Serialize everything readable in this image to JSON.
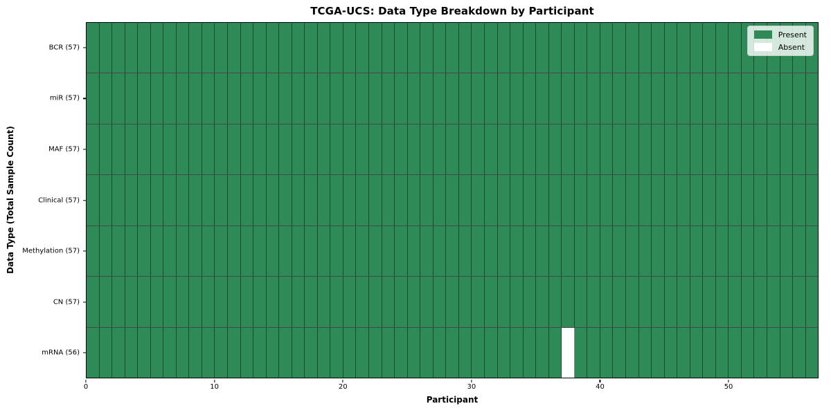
{
  "chart_data": {
    "type": "heatmap",
    "title": "TCGA-UCS: Data Type Breakdown by Participant",
    "xlabel": "Participant",
    "ylabel": "Data Type (Total Sample Count)",
    "n_participants": 57,
    "x_ticks": [
      0,
      10,
      20,
      30,
      40,
      50
    ],
    "x_range": [
      0,
      57
    ],
    "grid": "cell-borders",
    "rows": [
      {
        "label": "BCR (57)",
        "data_type": "BCR",
        "count": 57,
        "absent_participants": []
      },
      {
        "label": "miR (57)",
        "data_type": "miR",
        "count": 57,
        "absent_participants": []
      },
      {
        "label": "MAF (57)",
        "data_type": "MAF",
        "count": 57,
        "absent_participants": []
      },
      {
        "label": "Clinical (57)",
        "data_type": "Clinical",
        "count": 57,
        "absent_participants": []
      },
      {
        "label": "Methylation (57)",
        "data_type": "Methylation",
        "count": 57,
        "absent_participants": []
      },
      {
        "label": "CN (57)",
        "data_type": "CN",
        "count": 57,
        "absent_participants": []
      },
      {
        "label": "mRNA (56)",
        "data_type": "mRNA",
        "count": 56,
        "absent_participants": [
          37
        ]
      }
    ],
    "legend": {
      "position": "upper-right",
      "entries": [
        {
          "label": "Present",
          "color": "#2e8b57"
        },
        {
          "label": "Absent",
          "color": "#ffffff"
        }
      ]
    },
    "colors": {
      "present": "#2e8b57",
      "absent": "#ffffff",
      "cell_line": "rgba(0,0,0,0.45)",
      "row_line": "rgba(0,0,0,0.72)",
      "spine": "#000000",
      "background": "#ffffff"
    }
  }
}
